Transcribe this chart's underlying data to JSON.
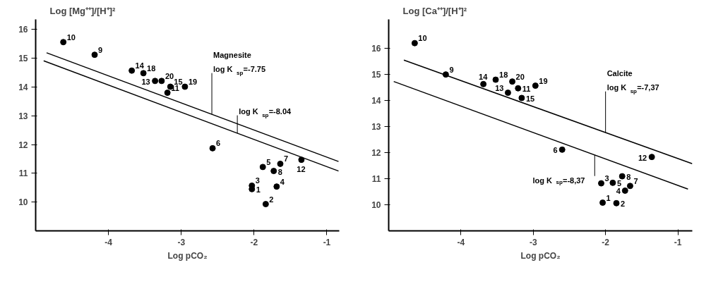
{
  "chart_data": [
    {
      "type": "scatter",
      "ylabel": "Log [Mg⁺⁺]/[H⁺]²",
      "xlabel": "Log pCO₂",
      "xlim": [
        -5,
        -0.83
      ],
      "ylim": [
        9,
        16.35
      ],
      "xticks": [
        -4,
        -3,
        -2,
        -1
      ],
      "yticks": [
        10,
        11,
        12,
        13,
        14,
        15,
        16
      ],
      "grid": false,
      "series": [
        {
          "marker": "circle",
          "color": "#000000",
          "x": [
            -4.62,
            -4.19,
            -3.68,
            -3.52,
            -3.36,
            -3.27,
            -3.15,
            -2.95,
            -3.19,
            -2.57,
            -1.88,
            -1.64,
            -1.73,
            -1.35,
            -2.03,
            -2.03,
            -1.69,
            -1.84
          ],
          "values": [
            15.56,
            15.12,
            14.57,
            14.48,
            14.21,
            14.21,
            14.01,
            14.01,
            13.8,
            11.87,
            11.22,
            11.33,
            11.08,
            11.47,
            10.57,
            10.45,
            10.54,
            9.93
          ]
        },
        {
          "type": "line",
          "marker": "none",
          "color": "#000000",
          "x": [
            -4.85,
            -0.84
          ],
          "values": [
            15.19,
            11.41
          ]
        },
        {
          "type": "line",
          "marker": "none",
          "color": "#000000",
          "x": [
            -4.89,
            -0.84
          ],
          "values": [
            14.91,
            11.08
          ]
        }
      ],
      "annotations": [
        {
          "text": "10",
          "x": -4.62,
          "y": 15.56
        },
        {
          "text": "9",
          "x": -4.19,
          "y": 15.12
        },
        {
          "text": "14",
          "x": -3.68,
          "y": 14.57
        },
        {
          "text": "18",
          "x": -3.52,
          "y": 14.48
        },
        {
          "text": "13",
          "x": -3.36,
          "y": 14.21
        },
        {
          "text": "20",
          "x": -3.27,
          "y": 14.21
        },
        {
          "text": "15",
          "x": -3.15,
          "y": 14.01
        },
        {
          "text": "19",
          "x": -2.95,
          "y": 14.01
        },
        {
          "text": "11",
          "x": -3.19,
          "y": 13.8
        },
        {
          "text": "6",
          "x": -2.57,
          "y": 11.87
        },
        {
          "text": "5",
          "x": -1.88,
          "y": 11.22
        },
        {
          "text": "7",
          "x": -1.64,
          "y": 11.33
        },
        {
          "text": "8",
          "x": -1.73,
          "y": 11.08
        },
        {
          "text": "12",
          "x": -1.35,
          "y": 11.47
        },
        {
          "text": "3",
          "x": -2.03,
          "y": 10.57
        },
        {
          "text": "1",
          "x": -2.03,
          "y": 10.45
        },
        {
          "text": "4",
          "x": -1.69,
          "y": 10.54
        },
        {
          "text": "2",
          "x": -1.84,
          "y": 9.93
        },
        "Magnesite",
        {
          "text": "log K$_{sp}$=-7.75",
          "x": -2.58,
          "y": 13.05
        },
        {
          "text": "log K$_{sp}$=-8.04",
          "x": -2.23,
          "y": 12.39
        }
      ]
    },
    {
      "type": "scatter",
      "ylabel": "Log [Ca⁺⁺]/[H⁺]²",
      "xlabel": "Log pCO₂",
      "xlim": [
        -5,
        -0.8
      ],
      "ylim": [
        9,
        17.1
      ],
      "xticks": [
        -4,
        -3,
        -2,
        -1
      ],
      "yticks": [
        10,
        11,
        12,
        13,
        14,
        15,
        16
      ],
      "grid": false,
      "series": [
        {
          "marker": "circle",
          "color": "#000000",
          "x": [
            -4.64,
            -4.21,
            -3.69,
            -3.52,
            -3.35,
            -3.29,
            -3.21,
            -3.16,
            -2.97,
            -2.6,
            -1.36,
            -1.77,
            -2.06,
            -1.9,
            -1.66,
            -1.73,
            -2.04,
            -1.85
          ],
          "values": [
            16.19,
            14.99,
            14.62,
            14.79,
            14.29,
            14.72,
            14.46,
            14.09,
            14.56,
            12.11,
            11.83,
            11.09,
            10.82,
            10.84,
            10.72,
            10.54,
            10.08,
            10.06
          ]
        },
        {
          "type": "line",
          "marker": "none",
          "color": "#000000",
          "x": [
            -4.79,
            -0.8
          ],
          "values": [
            15.54,
            11.57
          ]
        },
        {
          "type": "line",
          "marker": "none",
          "color": "#000000",
          "x": [
            -4.93,
            -0.86
          ],
          "values": [
            14.72,
            10.6
          ]
        }
      ],
      "annotations": [
        {
          "text": "10",
          "x": -4.64,
          "y": 16.19
        },
        {
          "text": "9",
          "x": -4.21,
          "y": 14.99
        },
        {
          "text": "14",
          "x": -3.69,
          "y": 14.62
        },
        {
          "text": "18",
          "x": -3.52,
          "y": 14.79
        },
        {
          "text": "13",
          "x": -3.35,
          "y": 14.29
        },
        {
          "text": "20",
          "x": -3.29,
          "y": 14.72
        },
        {
          "text": "11",
          "x": -3.21,
          "y": 14.46
        },
        {
          "text": "15",
          "x": -3.16,
          "y": 14.09
        },
        {
          "text": "19",
          "x": -2.97,
          "y": 14.56
        },
        {
          "text": "6",
          "x": -2.6,
          "y": 12.11
        },
        {
          "text": "12",
          "x": -1.36,
          "y": 11.83
        },
        {
          "text": "8",
          "x": -1.77,
          "y": 11.09
        },
        {
          "text": "3",
          "x": -2.06,
          "y": 10.82
        },
        {
          "text": "5",
          "x": -1.9,
          "y": 10.84
        },
        {
          "text": "7",
          "x": -1.66,
          "y": 10.72
        },
        {
          "text": "4",
          "x": -1.73,
          "y": 10.54
        },
        {
          "text": "1",
          "x": -2.04,
          "y": 10.08
        },
        {
          "text": "2",
          "x": -1.85,
          "y": 10.06
        },
        "Calcite",
        {
          "text": "log K$_{sp}$=-7,37",
          "x": -2.0,
          "y": 12.76
        },
        {
          "text": "log K$_{sp}$=-8,37",
          "x": -2.15,
          "y": 11.91
        }
      ]
    }
  ]
}
